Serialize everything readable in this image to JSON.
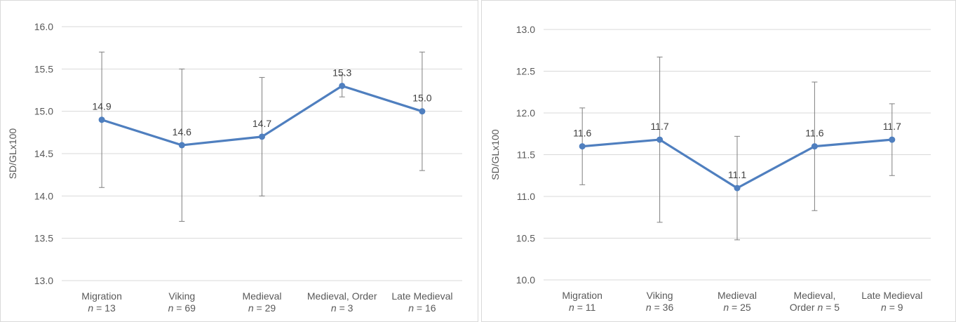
{
  "colors": {
    "series": "#4f7fbf",
    "grid": "#d9d9d9",
    "error_bar": "#7f7f7f"
  },
  "chart_data": [
    {
      "type": "line",
      "title": "",
      "xlabel": "",
      "ylabel": "SD/GLx100",
      "ylim": [
        13.0,
        16.0
      ],
      "yticks": [
        "13.0",
        "13.5",
        "14.0",
        "14.5",
        "15.0",
        "15.5",
        "16.0"
      ],
      "grid": true,
      "categories": [
        {
          "name": "Migration",
          "n_prefix": "n",
          "n_text": " = 13"
        },
        {
          "name": "Viking",
          "n_prefix": "n",
          "n_text": " = 69"
        },
        {
          "name": "Medieval",
          "n_prefix": "n",
          "n_text": " = 29"
        },
        {
          "name": "Medieval, Order",
          "n_prefix": "n",
          "n_text": " = 3"
        },
        {
          "name": "Late Medieval",
          "n_prefix": "n",
          "n_text": " = 16"
        }
      ],
      "values": [
        14.9,
        14.6,
        14.7,
        15.3,
        15.0
      ],
      "value_labels": [
        "14.9",
        "14.6",
        "14.7",
        "15.3",
        "15.0"
      ],
      "error_low": [
        14.1,
        13.7,
        14.0,
        15.17,
        14.3
      ],
      "error_high": [
        15.7,
        15.5,
        15.4,
        15.43,
        15.7
      ]
    },
    {
      "type": "line",
      "title": "",
      "xlabel": "",
      "ylabel": "SD/GLx100",
      "ylim": [
        10.0,
        13.0
      ],
      "yticks": [
        "10.0",
        "10.5",
        "11.0",
        "11.5",
        "12.0",
        "12.5",
        "13.0"
      ],
      "grid": true,
      "categories": [
        {
          "name": "Migration",
          "n_prefix": "n",
          "n_text": " = 11"
        },
        {
          "name": "Viking",
          "n_prefix": "n",
          "n_text": " = 36"
        },
        {
          "name": "Medieval",
          "n_prefix": "n",
          "n_text": " = 25"
        },
        {
          "name": "Medieval,",
          "name2": "Order",
          "n_prefix": "n",
          "n_text": " = 5"
        },
        {
          "name": "Late Medieval",
          "n_prefix": "n",
          "n_text": " = 9"
        }
      ],
      "values": [
        11.6,
        11.68,
        11.1,
        11.6,
        11.68
      ],
      "value_labels": [
        "11.6",
        "11.7",
        "11.1",
        "11.6",
        "11.7"
      ],
      "error_low": [
        11.14,
        10.69,
        10.48,
        10.83,
        11.25
      ],
      "error_high": [
        12.06,
        12.67,
        11.72,
        12.37,
        12.11
      ]
    }
  ]
}
